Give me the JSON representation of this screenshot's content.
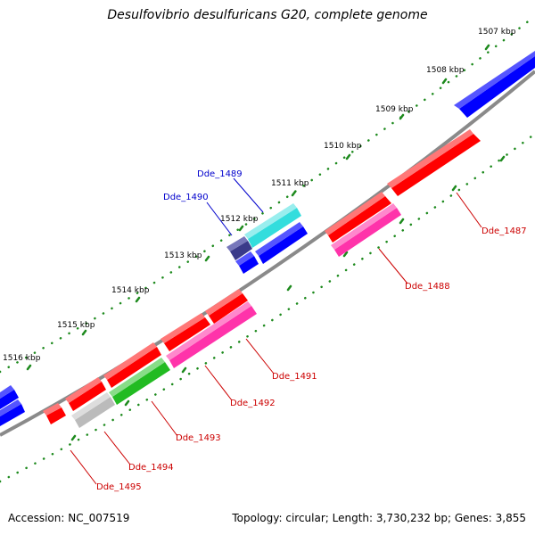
{
  "title": "Desulfovibrio desulfuricans G20, complete genome",
  "accession": "Accession: NC_007519",
  "topology": "Topology: circular; Length: 3,730,232 bp; Genes: 3,855",
  "kbp_labels": [
    "1507 kbp",
    "1508 kbp",
    "1509 kbp",
    "1510 kbp",
    "1511 kbp",
    "1512 kbp",
    "1513 kbp",
    "1514 kbp",
    "1515 kbp",
    "1516 kbp"
  ],
  "gene_labels": [
    "Dde_1487",
    "Dde_1488",
    "Dde_1489",
    "Dde_1490",
    "Dde_1491",
    "Dde_1492",
    "Dde_1493",
    "Dde_1494",
    "Dde_1495"
  ],
  "colors": {
    "backbone": "#8a8a8a",
    "tick": "#1d8a1d",
    "red": "#ff0000",
    "pink": "#ff33aa",
    "green": "#22bb22",
    "cyan": "#33dddd",
    "blue": "#0000ff",
    "navy": "#3a3a8a",
    "gray": "#bbbbbb",
    "label_red": "#cc0000",
    "label_blue": "#0000cc"
  }
}
